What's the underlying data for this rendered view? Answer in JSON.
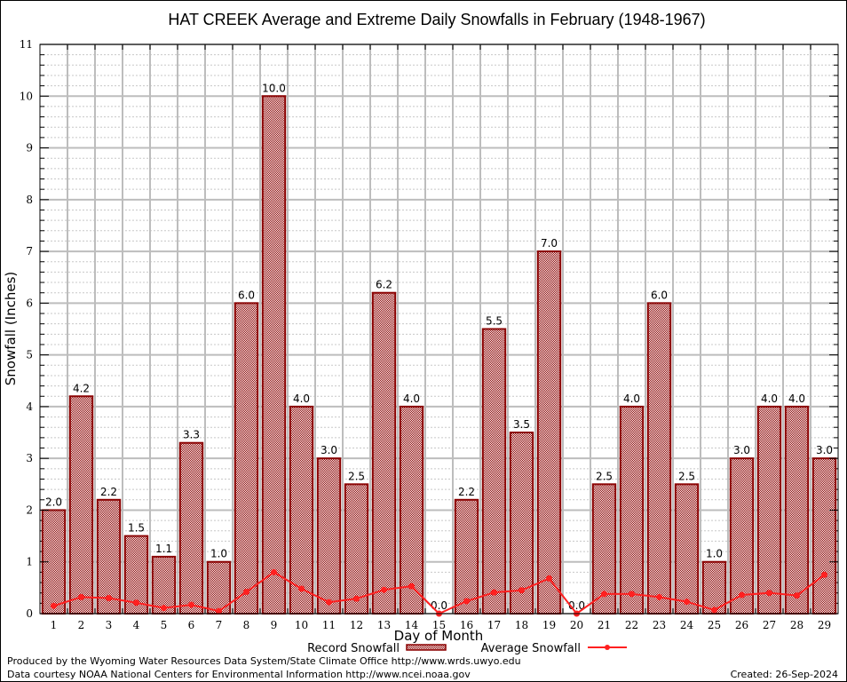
{
  "chart_data": {
    "type": "bar",
    "title": "HAT CREEK Average and Extreme Daily Snowfalls in February (1948-1967)",
    "xlabel": "Day of Month",
    "ylabel": "Snowfall (Inches)",
    "ylim": [
      0,
      11
    ],
    "yticks": [
      0,
      1,
      2,
      3,
      4,
      5,
      6,
      7,
      8,
      9,
      10,
      11
    ],
    "grid": true,
    "categories": [
      "1",
      "2",
      "3",
      "4",
      "5",
      "6",
      "7",
      "8",
      "9",
      "10",
      "11",
      "12",
      "13",
      "14",
      "15",
      "16",
      "17",
      "18",
      "19",
      "20",
      "21",
      "22",
      "23",
      "24",
      "25",
      "26",
      "27",
      "28",
      "29"
    ],
    "series": [
      {
        "name": "Record Snowfall",
        "type": "bar",
        "color": "#8b0000",
        "values": [
          2.0,
          4.2,
          2.2,
          1.5,
          1.1,
          3.3,
          1.0,
          6.0,
          10.0,
          4.0,
          3.0,
          2.5,
          6.2,
          4.0,
          0.0,
          2.2,
          5.5,
          3.5,
          7.0,
          0.0,
          2.5,
          4.0,
          6.0,
          2.5,
          1.0,
          3.0,
          4.0,
          4.0,
          3.0
        ],
        "labels": [
          "2.0",
          "4.2",
          "2.2",
          "1.5",
          "1.1",
          "3.3",
          "1.0",
          "6.0",
          "10.0",
          "4.0",
          "3.0",
          "2.5",
          "6.2",
          "4.0",
          "0.0",
          "2.2",
          "5.5",
          "3.5",
          "7.0",
          "0.0",
          "2.5",
          "4.0",
          "6.0",
          "2.5",
          "1.0",
          "3.0",
          "4.0",
          "4.0",
          "3.0"
        ]
      },
      {
        "name": "Average Snowfall",
        "type": "line",
        "color": "#ff2020",
        "values": [
          0.15,
          0.32,
          0.3,
          0.21,
          0.11,
          0.17,
          0.05,
          0.42,
          0.8,
          0.48,
          0.22,
          0.29,
          0.46,
          0.53,
          0.0,
          0.24,
          0.41,
          0.45,
          0.68,
          0.0,
          0.38,
          0.38,
          0.32,
          0.23,
          0.07,
          0.36,
          0.4,
          0.35,
          0.75
        ]
      }
    ],
    "legend": {
      "placement": "bottom-center",
      "entries": [
        "Record Snowfall",
        "Average Snowfall"
      ]
    }
  },
  "footer": {
    "line1": "Produced by the Wyoming Water Resources Data System/State Climate Office http://www.wrds.uwyo.edu",
    "line2": "Data courtesy NOAA National Centers for Environmental Information http://www.ncei.noaa.gov",
    "created": "Created:  26-Sep-2024"
  }
}
